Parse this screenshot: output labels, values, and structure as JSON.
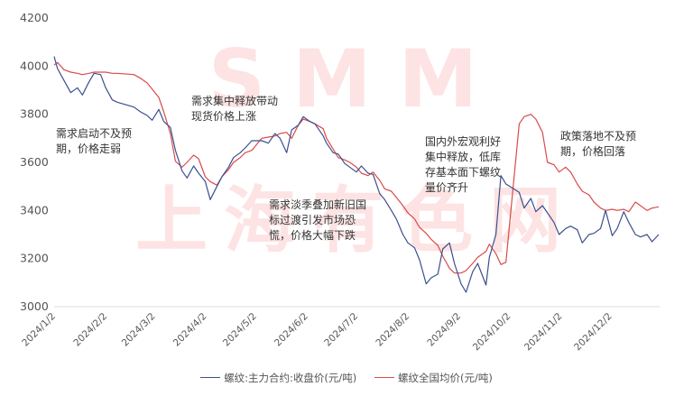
{
  "chart_data": {
    "type": "line",
    "title": "",
    "xlabel": "",
    "ylabel": "",
    "ylim": [
      3000,
      4200
    ],
    "yticks": [
      3000,
      3200,
      3400,
      3600,
      3800,
      4000,
      4200
    ],
    "xticks": [
      "2024/1/2",
      "2024/2/2",
      "2024/3/2",
      "2024/4/2",
      "2024/5/2",
      "2024/6/2",
      "2024/7/2",
      "2024/8/2",
      "2024/9/2",
      "2024/10/2",
      "2024/11/2",
      "2024/12/2"
    ],
    "grid": false,
    "legend_position": "bottom",
    "x": [
      "2024-01-02",
      "2024-01-04",
      "2024-01-08",
      "2024-01-12",
      "2024-01-16",
      "2024-01-19",
      "2024-01-23",
      "2024-01-26",
      "2024-01-30",
      "2024-02-02",
      "2024-02-06",
      "2024-02-09",
      "2024-02-19",
      "2024-02-23",
      "2024-02-27",
      "2024-03-01",
      "2024-03-05",
      "2024-03-08",
      "2024-03-12",
      "2024-03-15",
      "2024-03-19",
      "2024-03-22",
      "2024-03-26",
      "2024-03-29",
      "2024-04-02",
      "2024-04-05",
      "2024-04-09",
      "2024-04-12",
      "2024-04-16",
      "2024-04-19",
      "2024-04-23",
      "2024-04-26",
      "2024-04-30",
      "2024-05-06",
      "2024-05-10",
      "2024-05-14",
      "2024-05-17",
      "2024-05-21",
      "2024-05-24",
      "2024-05-28",
      "2024-05-31",
      "2024-06-04",
      "2024-06-07",
      "2024-06-12",
      "2024-06-14",
      "2024-06-18",
      "2024-06-21",
      "2024-06-25",
      "2024-06-28",
      "2024-07-02",
      "2024-07-05",
      "2024-07-09",
      "2024-07-12",
      "2024-07-16",
      "2024-07-19",
      "2024-07-23",
      "2024-07-26",
      "2024-07-30",
      "2024-08-02",
      "2024-08-06",
      "2024-08-09",
      "2024-08-13",
      "2024-08-16",
      "2024-08-20",
      "2024-08-23",
      "2024-08-27",
      "2024-08-30",
      "2024-09-03",
      "2024-09-06",
      "2024-09-10",
      "2024-09-13",
      "2024-09-18",
      "2024-09-20",
      "2024-09-24",
      "2024-09-27",
      "2024-09-30",
      "2024-10-08",
      "2024-10-11",
      "2024-10-15",
      "2024-10-18",
      "2024-10-22",
      "2024-10-25",
      "2024-10-29",
      "2024-11-01",
      "2024-11-05",
      "2024-11-08",
      "2024-11-12",
      "2024-11-15",
      "2024-11-19",
      "2024-11-22",
      "2024-11-26",
      "2024-11-29",
      "2024-12-03",
      "2024-12-06",
      "2024-12-10",
      "2024-12-13",
      "2024-12-17",
      "2024-12-20",
      "2024-12-24",
      "2024-12-27",
      "2024-12-31"
    ],
    "series": [
      {
        "name": "螺纹:主力合约:收盘价(元/吨)",
        "color": "#3b4f8f",
        "values": [
          4040,
          3990,
          3940,
          3890,
          3910,
          3880,
          3935,
          3970,
          3965,
          3910,
          3860,
          3850,
          3830,
          3810,
          3795,
          3775,
          3820,
          3770,
          3745,
          3650,
          3565,
          3535,
          3585,
          3555,
          3520,
          3445,
          3500,
          3540,
          3580,
          3620,
          3640,
          3660,
          3690,
          3690,
          3680,
          3720,
          3700,
          3640,
          3735,
          3755,
          3790,
          3770,
          3760,
          3710,
          3680,
          3640,
          3635,
          3595,
          3580,
          3560,
          3585,
          3555,
          3550,
          3470,
          3445,
          3400,
          3365,
          3300,
          3265,
          3245,
          3195,
          3095,
          3120,
          3135,
          3240,
          3265,
          3180,
          3095,
          3060,
          3145,
          3180,
          3090,
          3205,
          3300,
          3545,
          3510,
          3475,
          3410,
          3450,
          3395,
          3420,
          3390,
          3350,
          3300,
          3325,
          3335,
          3320,
          3265,
          3300,
          3305,
          3325,
          3400,
          3295,
          3325,
          3395,
          3350,
          3300,
          3290,
          3300,
          3270,
          3300
        ]
      },
      {
        "name": "螺纹全国均价(元/吨)",
        "color": "#d94b4b",
        "values": [
          4005,
          4015,
          3985,
          3975,
          3970,
          3965,
          3970,
          3975,
          3975,
          3975,
          3970,
          3970,
          3965,
          3950,
          3930,
          3905,
          3870,
          3810,
          3720,
          3605,
          3580,
          3600,
          3630,
          3615,
          3540,
          3520,
          3505,
          3540,
          3570,
          3600,
          3620,
          3640,
          3650,
          3700,
          3705,
          3710,
          3720,
          3725,
          3700,
          3755,
          3780,
          3770,
          3760,
          3740,
          3700,
          3655,
          3620,
          3610,
          3600,
          3580,
          3555,
          3545,
          3560,
          3525,
          3490,
          3480,
          3455,
          3420,
          3390,
          3365,
          3330,
          3305,
          3280,
          3255,
          3210,
          3160,
          3140,
          3140,
          3150,
          3180,
          3205,
          3230,
          3260,
          3220,
          3175,
          3185,
          3760,
          3790,
          3800,
          3780,
          3725,
          3600,
          3590,
          3560,
          3580,
          3560,
          3510,
          3480,
          3465,
          3435,
          3410,
          3400,
          3405,
          3400,
          3405,
          3395,
          3435,
          3420,
          3400,
          3410,
          3415
        ]
      }
    ],
    "annotations": [
      {
        "text": "需求启动不及预\n期，价格走弱"
      },
      {
        "text": "需求集中释放带动\n现货价格上涨"
      },
      {
        "text": "需求淡季叠加新旧国\n标过渡引发市场恐\n慌，价格大幅下跌"
      },
      {
        "text": "国内外宏观利好\n集中释放，低库\n存基本面下螺纹\n量价齐升"
      },
      {
        "text": "政策落地不及预\n期，价格回落"
      }
    ]
  },
  "watermark": {
    "top": "SMM",
    "bottom": "上海有色网",
    "color": "#fde3e3"
  },
  "legend": {
    "items": [
      {
        "label": "螺纹:主力合约:收盘价(元/吨)",
        "color": "#3b4f8f"
      },
      {
        "label": "螺纹全国均价(元/吨)",
        "color": "#d94b4b"
      }
    ]
  }
}
